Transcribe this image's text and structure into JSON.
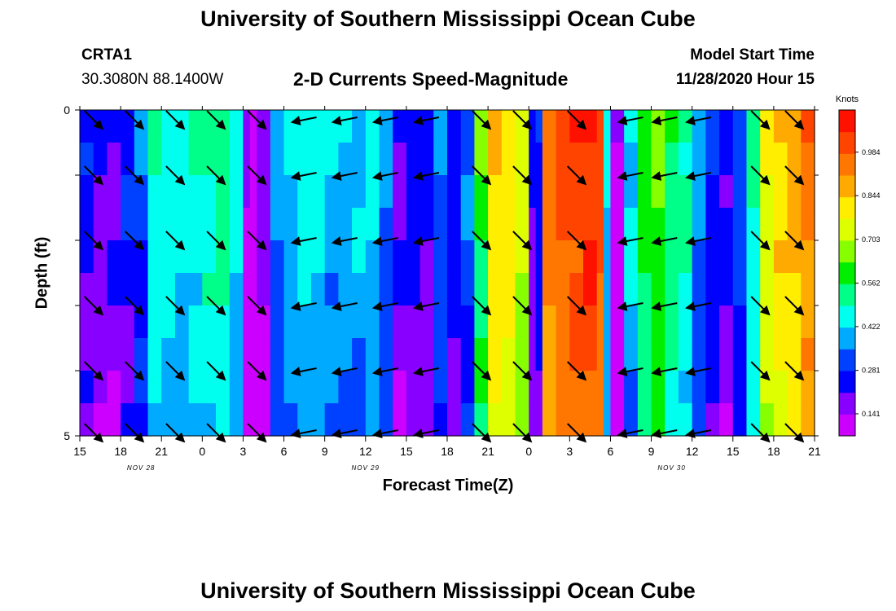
{
  "page_title": "University of Southern Mississippi Ocean Cube",
  "footer_title": "University of Southern Mississippi Ocean Cube",
  "station": {
    "id": "CRTA1",
    "coords": "30.3080N 88.1400W"
  },
  "chart_title": "2-D Currents Speed-Magnitude",
  "model": {
    "label": "Model Start Time",
    "value": "11/28/2020 Hour 15"
  },
  "colors": {
    "palette": [
      "#cc00ff",
      "#8800ff",
      "#0000ff",
      "#0040ff",
      "#00aaff",
      "#00ffee",
      "#00ff88",
      "#00ee00",
      "#88ff00",
      "#ddff00",
      "#ffee00",
      "#ffaa00",
      "#ff7700",
      "#ff4400",
      "#ff1100"
    ]
  },
  "chart_data": {
    "type": "heatmap",
    "title": "2-D Currents Speed-Magnitude",
    "xlabel": "Forecast Time(Z)",
    "ylabel": "Depth (ft)",
    "x_hours": [
      0,
      3,
      6,
      9,
      12,
      15,
      18,
      21,
      24,
      27,
      30,
      33,
      36,
      39,
      42,
      45,
      48,
      51,
      54
    ],
    "x_tick_labels": [
      "15",
      "18",
      "21",
      "0",
      "3",
      "6",
      "9",
      "12",
      "15",
      "18",
      "21",
      "0",
      "3",
      "6",
      "9",
      "12",
      "15",
      "18",
      "21"
    ],
    "date_labels": [
      {
        "label": "NOV  28",
        "hour": 4.5
      },
      {
        "label": "NOV  29",
        "hour": 21
      },
      {
        "label": "NOV  30",
        "hour": 43.5
      }
    ],
    "y_tick_labels": [
      "0",
      "5"
    ],
    "ylim": [
      0,
      5
    ],
    "colorbar": {
      "units": "Knots",
      "tick_labels": [
        "0.984",
        "0.844",
        "0.703",
        "0.562",
        "0.422",
        "0.281",
        "0.141"
      ],
      "tick_values": [
        0.984,
        0.844,
        0.703,
        0.562,
        0.422,
        0.281,
        0.141
      ],
      "range": [
        0.07,
        1.12
      ]
    },
    "speed_profile": [
      {
        "t": 0.0,
        "v": 0.27
      },
      {
        "t": 1.0,
        "v": 0.23
      },
      {
        "t": 2.0,
        "v": 0.24
      },
      {
        "t": 3.0,
        "v": 0.29
      },
      {
        "t": 4.0,
        "v": 0.34
      },
      {
        "t": 5.0,
        "v": 0.52
      },
      {
        "t": 6.0,
        "v": 0.48
      },
      {
        "t": 7.0,
        "v": 0.47
      },
      {
        "t": 8.0,
        "v": 0.49
      },
      {
        "t": 9.0,
        "v": 0.52
      },
      {
        "t": 10.0,
        "v": 0.54
      },
      {
        "t": 11.0,
        "v": 0.47
      },
      {
        "t": 12.0,
        "v": 0.18
      },
      {
        "t": 12.5,
        "v": 0.11
      },
      {
        "t": 13.0,
        "v": 0.2
      },
      {
        "t": 14.0,
        "v": 0.38
      },
      {
        "t": 15.0,
        "v": 0.44
      },
      {
        "t": 16.0,
        "v": 0.46
      },
      {
        "t": 17.0,
        "v": 0.45
      },
      {
        "t": 18.0,
        "v": 0.42
      },
      {
        "t": 19.0,
        "v": 0.41
      },
      {
        "t": 20.0,
        "v": 0.44
      },
      {
        "t": 21.0,
        "v": 0.46
      },
      {
        "t": 22.0,
        "v": 0.38
      },
      {
        "t": 23.0,
        "v": 0.24
      },
      {
        "t": 24.0,
        "v": 0.27
      },
      {
        "t": 25.0,
        "v": 0.24
      },
      {
        "t": 26.0,
        "v": 0.36
      },
      {
        "t": 27.0,
        "v": 0.29
      },
      {
        "t": 28.0,
        "v": 0.36
      },
      {
        "t": 29.0,
        "v": 0.62
      },
      {
        "t": 30.0,
        "v": 0.86
      },
      {
        "t": 31.0,
        "v": 0.85
      },
      {
        "t": 32.0,
        "v": 0.75
      },
      {
        "t": 33.0,
        "v": 0.25
      },
      {
        "t": 33.5,
        "v": 0.3
      },
      {
        "t": 34.0,
        "v": 0.96
      },
      {
        "t": 35.0,
        "v": 1.02
      },
      {
        "t": 36.0,
        "v": 1.04
      },
      {
        "t": 37.0,
        "v": 1.08
      },
      {
        "t": 38.0,
        "v": 1.02
      },
      {
        "t": 38.5,
        "v": 0.45
      },
      {
        "t": 39.0,
        "v": 0.14
      },
      {
        "t": 40.0,
        "v": 0.45
      },
      {
        "t": 41.0,
        "v": 0.6
      },
      {
        "t": 42.0,
        "v": 0.66
      },
      {
        "t": 43.0,
        "v": 0.58
      },
      {
        "t": 44.0,
        "v": 0.52
      },
      {
        "t": 45.0,
        "v": 0.4
      },
      {
        "t": 46.0,
        "v": 0.28
      },
      {
        "t": 47.0,
        "v": 0.25
      },
      {
        "t": 48.0,
        "v": 0.35
      },
      {
        "t": 49.0,
        "v": 0.5
      },
      {
        "t": 50.0,
        "v": 0.8
      },
      {
        "t": 51.0,
        "v": 0.86
      },
      {
        "t": 52.0,
        "v": 0.9
      },
      {
        "t": 53.0,
        "v": 0.96
      },
      {
        "t": 54.0,
        "v": 0.97
      }
    ],
    "vector_depths": [
      0.15,
      1.0,
      2.0,
      3.0,
      4.0,
      4.95
    ],
    "vectors": [
      {
        "t": 1.0,
        "dir": "SE"
      },
      {
        "t": 4.0,
        "dir": "SE"
      },
      {
        "t": 7.0,
        "dir": "SE"
      },
      {
        "t": 10.0,
        "dir": "SE"
      },
      {
        "t": 13.0,
        "dir": "SE"
      },
      {
        "t": 16.5,
        "dir": "W"
      },
      {
        "t": 19.5,
        "dir": "W"
      },
      {
        "t": 22.5,
        "dir": "W"
      },
      {
        "t": 25.5,
        "dir": "W"
      },
      {
        "t": 29.5,
        "dir": "SE"
      },
      {
        "t": 32.5,
        "dir": "SE"
      },
      {
        "t": 36.5,
        "dir": "SE"
      },
      {
        "t": 40.5,
        "dir": "W"
      },
      {
        "t": 43.0,
        "dir": "W"
      },
      {
        "t": 45.5,
        "dir": "W"
      },
      {
        "t": 50.0,
        "dir": "SE"
      },
      {
        "t": 52.5,
        "dir": "SE"
      }
    ]
  }
}
